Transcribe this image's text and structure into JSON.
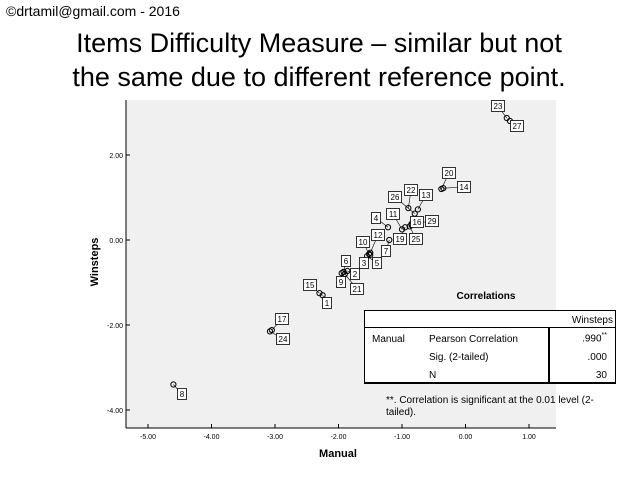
{
  "copyright": "©drtamil@gmail.com - 2016",
  "title_lines": [
    "Items Difficulty Measure – similar but not",
    "the same due to different reference point."
  ],
  "chart_data": {
    "type": "scatter",
    "xlabel": "Manual",
    "ylabel": "Winsteps",
    "xlim": [
      -5.5,
      1.2
    ],
    "ylim": [
      -4.2,
      3.0
    ],
    "x_ticks": [
      -5.0,
      -4.0,
      -3.0,
      -2.0,
      -1.0,
      0.0,
      1.0
    ],
    "x_tick_labels": [
      "-5.00",
      "-4.00",
      "-3.00",
      "-2.00",
      "-1.00",
      "0.00",
      "1.00"
    ],
    "y_ticks": [
      -4.0,
      -2.0,
      0.0,
      2.0
    ],
    "y_tick_labels": [
      "-4.00",
      "-2.00",
      "0.00",
      "2.00"
    ],
    "grid": false,
    "points": [
      {
        "label": "1",
        "x": -2.25,
        "y": -1.3
      },
      {
        "label": "2",
        "x": -1.86,
        "y": -0.73
      },
      {
        "label": "3",
        "x": -1.5,
        "y": -0.35
      },
      {
        "label": "4",
        "x": -1.22,
        "y": 0.3
      },
      {
        "label": "5",
        "x": -1.55,
        "y": -0.38
      },
      {
        "label": "6",
        "x": -1.92,
        "y": -0.75
      },
      {
        "label": "7",
        "x": -1.2,
        "y": 0.0
      },
      {
        "label": "8",
        "x": -4.6,
        "y": -3.4
      },
      {
        "label": "9",
        "x": -1.95,
        "y": -0.78
      },
      {
        "label": "10",
        "x": -1.52,
        "y": -0.33
      },
      {
        "label": "11",
        "x": -1.0,
        "y": 0.25
      },
      {
        "label": "12",
        "x": -1.5,
        "y": -0.3
      },
      {
        "label": "13",
        "x": -0.75,
        "y": 0.72
      },
      {
        "label": "14",
        "x": -0.35,
        "y": 1.22
      },
      {
        "label": "15",
        "x": -2.3,
        "y": -1.25
      },
      {
        "label": "16",
        "x": -0.85,
        "y": 0.35
      },
      {
        "label": "17",
        "x": -3.05,
        "y": -2.12
      },
      {
        "label": "19",
        "x": -0.95,
        "y": 0.3
      },
      {
        "label": "20",
        "x": -0.38,
        "y": 1.2
      },
      {
        "label": "21",
        "x": -1.9,
        "y": -0.8
      },
      {
        "label": "22",
        "x": -0.9,
        "y": 0.75
      },
      {
        "label": "23",
        "x": 0.65,
        "y": 2.87
      },
      {
        "label": "24",
        "x": -3.08,
        "y": -2.15
      },
      {
        "label": "25",
        "x": -0.88,
        "y": 0.32
      },
      {
        "label": "26",
        "x": -0.8,
        "y": 0.62
      },
      {
        "label": "27",
        "x": 0.7,
        "y": 2.8
      },
      {
        "label": "29",
        "x": -0.85,
        "y": 0.38
      }
    ]
  },
  "correlations": {
    "title": "Correlations",
    "column_header": "Winsteps",
    "row_header": "Manual",
    "rows": [
      {
        "label": "Pearson Correlation",
        "value": ".990",
        "mark": "**"
      },
      {
        "label": "Sig. (2-tailed)",
        "value": ".000",
        "mark": ""
      },
      {
        "label": "N",
        "value": "30",
        "mark": ""
      }
    ],
    "footnote": "**. Correlation is significant at the 0.01 level (2-tailed)."
  }
}
